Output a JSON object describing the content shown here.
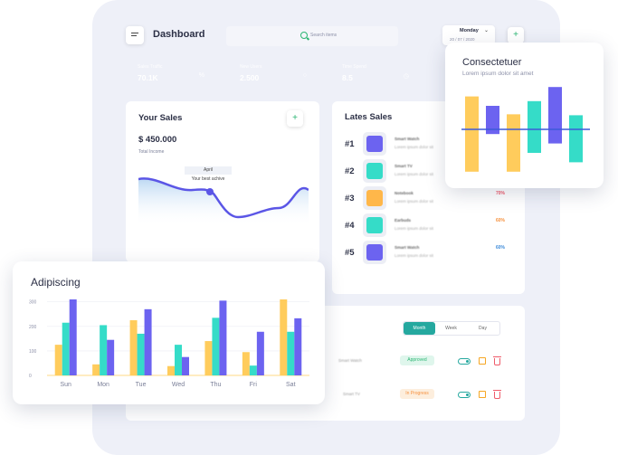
{
  "header": {
    "title": "Dashboard",
    "search_placeholder": "Search items",
    "date_day": "Monday",
    "date_value": "20 / 07 / 2020"
  },
  "stats": [
    {
      "label": "Sales Traffic",
      "value": "70.1K",
      "color": "#6c63f0",
      "icon": "percent-icon"
    },
    {
      "label": "New Users",
      "value": "2.500",
      "color": "#ffb74a",
      "icon": "lock-icon"
    },
    {
      "label": "Time Spend",
      "value": "8.5",
      "color": "#35dcc8",
      "icon": "clock-icon"
    },
    {
      "label": "",
      "value": "",
      "color": "#f6913e",
      "icon": ""
    }
  ],
  "your_sales": {
    "title": "Your Sales",
    "amount": "$ 450.000",
    "subtitle": "Total Income",
    "tooltip_month": "April",
    "tooltip_text": "Your best achive",
    "line_color": "#5b56e6"
  },
  "latest_sales": {
    "title": "Lates Sales",
    "items": [
      {
        "rank": "#1",
        "name": "Smart Watch",
        "desc": "Lorem ipsum dolor sit",
        "color": "#6c63f0",
        "pct": ""
      },
      {
        "rank": "#2",
        "name": "Smart TV",
        "desc": "Lorem ipsum dolor sit",
        "color": "#35dcc8",
        "pct": ""
      },
      {
        "rank": "#3",
        "name": "Notebook",
        "desc": "Lorem ipsum dolor sit",
        "color": "#ffb74a",
        "pct": "70%",
        "pct_color": "#ef5b6a"
      },
      {
        "rank": "#4",
        "name": "Earbuds",
        "desc": "Lorem ipsum dolor sit",
        "color": "#35dcc8",
        "pct": "60%",
        "pct_color": "#f6913e"
      },
      {
        "rank": "#5",
        "name": "Smart Watch",
        "desc": "Lorem ipsum dolor sit",
        "color": "#6c63f0",
        "pct": "60%",
        "pct_color": "#3d8bd9"
      }
    ]
  },
  "orders": {
    "tabs": [
      "Month",
      "Week",
      "Day"
    ],
    "active_tab": 0,
    "rows": [
      {
        "name": "Smart Watch",
        "status": "Approved",
        "status_bg": "#dff6ec",
        "status_color": "#2bb673"
      },
      {
        "name": "Smart TV",
        "status": "In Progress",
        "status_bg": "#fdeedd",
        "status_color": "#f6913e"
      }
    ]
  },
  "popup_top": {
    "title": "Consectetuer",
    "subtitle": "Lorem ipsum dolor sit amet"
  },
  "popup_bottom": {
    "title": "Adipiscing"
  },
  "chart_data": [
    {
      "type": "bar",
      "title": "Adipiscing",
      "categories": [
        "Sun",
        "Mon",
        "Tue",
        "Wed",
        "Thu",
        "Fri",
        "Sat"
      ],
      "yticks": [
        0,
        100,
        200,
        300
      ],
      "ylim": [
        0,
        310
      ],
      "series": [
        {
          "values": [
            125,
            45,
            225,
            38,
            140,
            95,
            310
          ],
          "color": "#ffcc5c"
        },
        {
          "values": [
            215,
            205,
            170,
            125,
            235,
            40,
            178
          ],
          "color": "#35dcc8"
        },
        {
          "values": [
            310,
            145,
            270,
            75,
            305,
            178,
            233
          ],
          "color": "#6c63f0"
        }
      ]
    },
    {
      "type": "bar",
      "title": "Consectetuer",
      "bars": [
        {
          "low": -45,
          "high": 35,
          "color": "#ffcc5c"
        },
        {
          "low": -5,
          "high": 25,
          "color": "#6c63f0"
        },
        {
          "low": -45,
          "high": 16,
          "color": "#ffcc5c"
        },
        {
          "low": -25,
          "high": 30,
          "color": "#35dcc8"
        },
        {
          "low": -15,
          "high": 45,
          "color": "#6c63f0"
        },
        {
          "low": -35,
          "high": 15,
          "color": "#35dcc8"
        }
      ],
      "ylim": [
        -50,
        50
      ]
    }
  ]
}
